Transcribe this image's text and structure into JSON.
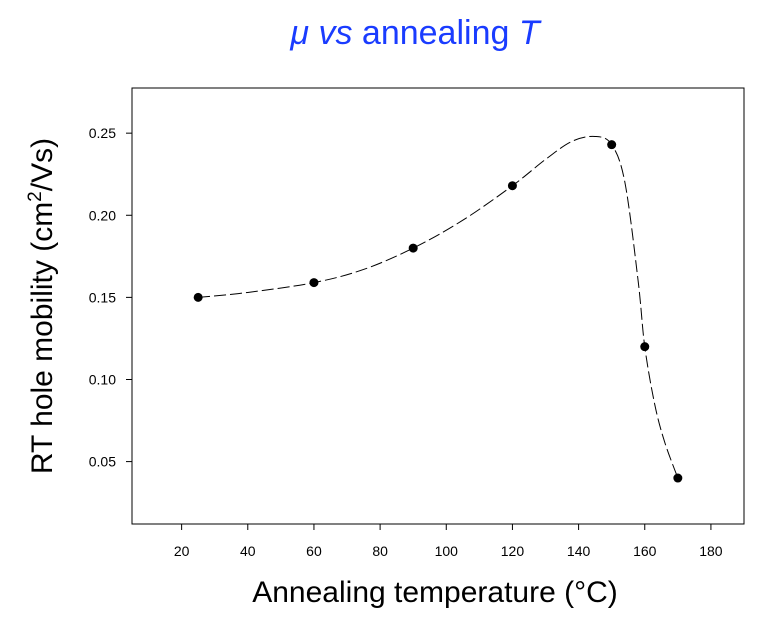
{
  "chart_data": {
    "type": "scatter",
    "title": {
      "mu": "μ",
      "vs": " vs",
      "middle": " annealing ",
      "T": "T"
    },
    "xlabel": "Annealing temperature (°C)",
    "ylabel": {
      "before": "RT hole mobility (cm",
      "sup": "2",
      "after": "/Vs)"
    },
    "x_ticks": [
      20,
      40,
      60,
      80,
      100,
      120,
      140,
      160,
      180
    ],
    "x_tick_labels": [
      "20",
      "40",
      "60",
      "80",
      "100",
      "120",
      "140",
      "160",
      "180"
    ],
    "y_ticks": [
      0.05,
      0.1,
      0.15,
      0.2,
      0.25
    ],
    "y_tick_labels": [
      "0.05",
      "0.10",
      "0.15",
      "0.20",
      "0.25"
    ],
    "xlim": [
      5,
      190
    ],
    "ylim": [
      0.012,
      0.2775
    ],
    "grid": false,
    "series": [
      {
        "points": [
          {
            "x": 25,
            "y": 0.15
          },
          {
            "x": 60,
            "y": 0.159
          },
          {
            "x": 90,
            "y": 0.18
          },
          {
            "x": 120,
            "y": 0.218
          },
          {
            "x": 150,
            "y": 0.243
          },
          {
            "x": 160,
            "y": 0.12
          },
          {
            "x": 170,
            "y": 0.04
          }
        ],
        "fit_curve": {
          "style": "dashed",
          "x": [
            25,
            40,
            60,
            75,
            90,
            105,
            120,
            130,
            138,
            145,
            150,
            154,
            158,
            160,
            163,
            166,
            170
          ],
          "y": [
            0.15,
            0.153,
            0.159,
            0.167,
            0.18,
            0.197,
            0.218,
            0.234,
            0.245,
            0.248,
            0.243,
            0.22,
            0.16,
            0.12,
            0.085,
            0.062,
            0.04
          ]
        }
      }
    ],
    "colors": {
      "title": "#1a3cff",
      "marker": "#000000",
      "line": "#000000",
      "axes": "#000000"
    }
  }
}
